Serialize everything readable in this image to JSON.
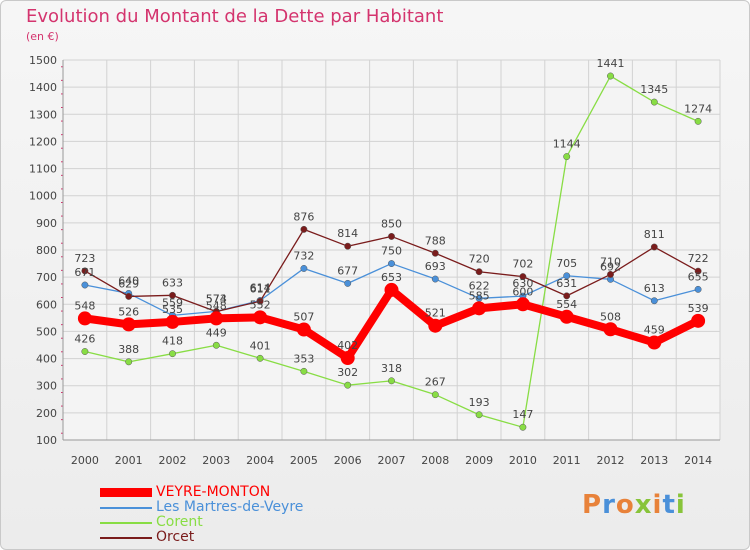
{
  "title": "Evolution du Montant de la Dette par Habitant",
  "subtitle": "(en €)",
  "logo_text": "Proxiti",
  "chart_data": {
    "type": "line",
    "title": "Evolution du Montant de la Dette par Habitant",
    "ylabel": "(en €)",
    "xlabel": "",
    "ylim": [
      100,
      1500
    ],
    "yticks": [
      100,
      200,
      300,
      400,
      500,
      600,
      700,
      800,
      900,
      1000,
      1100,
      1200,
      1300,
      1400,
      1500
    ],
    "categories": [
      "2000",
      "2001",
      "2002",
      "2003",
      "2004",
      "2005",
      "2006",
      "2007",
      "2008",
      "2009",
      "2010",
      "2011",
      "2012",
      "2013",
      "2014"
    ],
    "grid": true,
    "legend_position": "bottom-left",
    "series": [
      {
        "name": "VEYRE-MONTON",
        "color": "#ff0000",
        "values": [
          548,
          526,
          535,
          548,
          552,
          507,
          402,
          653,
          521,
          585,
          600,
          554,
          508,
          459,
          539
        ]
      },
      {
        "name": "Les Martres-de-Veyre",
        "color": "#4a90d9",
        "values": [
          671,
          640,
          559,
          574,
          614,
          732,
          677,
          750,
          693,
          622,
          630,
          705,
          692,
          613,
          655
        ]
      },
      {
        "name": "Corent",
        "color": "#88dd44",
        "values": [
          426,
          388,
          418,
          449,
          401,
          353,
          302,
          318,
          267,
          193,
          147,
          1144,
          1441,
          1345,
          1274
        ]
      },
      {
        "name": "Orcet",
        "color": "#7a1c1c",
        "values": [
          723,
          629,
          633,
          573,
          611,
          876,
          814,
          850,
          788,
          720,
          702,
          631,
          710,
          811,
          722
        ]
      }
    ]
  }
}
